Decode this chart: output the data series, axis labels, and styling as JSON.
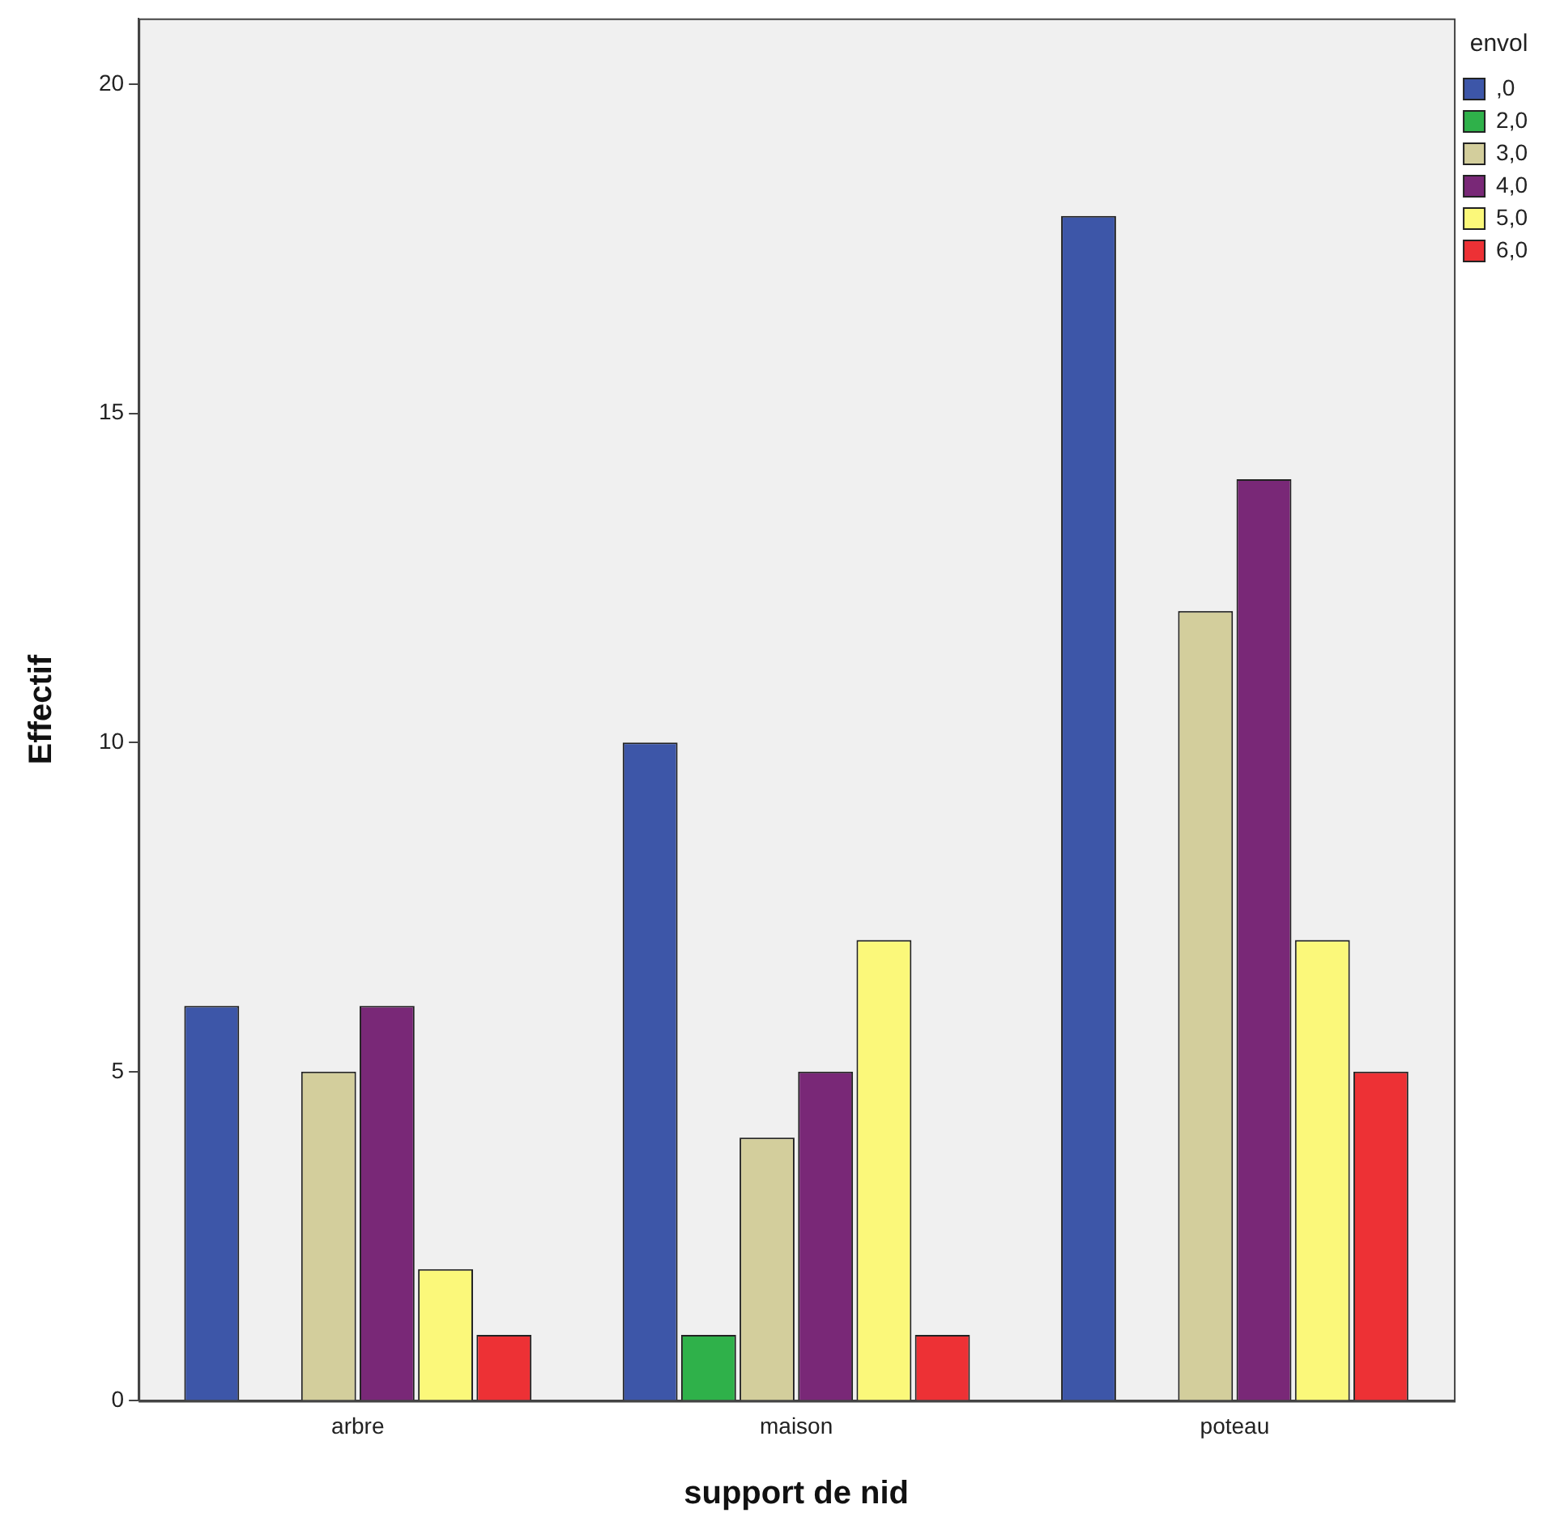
{
  "chart_data": {
    "type": "bar",
    "xlabel": "support de nid",
    "ylabel": "Effectif",
    "legend_title": "envol",
    "categories": [
      "arbre",
      "maison",
      "poteau"
    ],
    "series": [
      {
        "name": ",0",
        "color": "#3d56a8",
        "values": [
          6,
          10,
          18
        ]
      },
      {
        "name": "2,0",
        "color": "#2fb14a",
        "values": [
          0,
          1,
          0
        ]
      },
      {
        "name": "3,0",
        "color": "#d3ce9c",
        "values": [
          5,
          4,
          12
        ]
      },
      {
        "name": "4,0",
        "color": "#792877",
        "values": [
          6,
          5,
          14
        ]
      },
      {
        "name": "5,0",
        "color": "#fbf87a",
        "values": [
          2,
          7,
          7
        ]
      },
      {
        "name": "6,0",
        "color": "#ed3135",
        "values": [
          1,
          1,
          5
        ]
      }
    ],
    "ylim": [
      0,
      21
    ],
    "yticks": [
      0,
      5,
      10,
      15,
      20
    ],
    "grid": false,
    "legend": "top right"
  }
}
